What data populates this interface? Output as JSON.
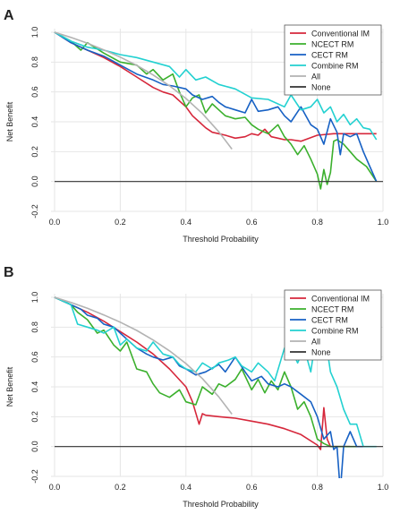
{
  "chart_data": [
    {
      "type": "line",
      "panel_label": "A",
      "xlabel": "Threshold Probability",
      "ylabel": "Net Benefit",
      "xlim": [
        0,
        1
      ],
      "ylim": [
        -0.2,
        1.0
      ],
      "xticks": [
        "0.0",
        "0.2",
        "0.4",
        "0.6",
        "0.8",
        "1.0"
      ],
      "yticks": [
        "-0.2",
        "0.0",
        "0.2",
        "0.4",
        "0.6",
        "0.8",
        "1.0"
      ],
      "grid": true,
      "legend_position": "top-right",
      "series": [
        {
          "name": "Conventional IM",
          "color": "#d6273b",
          "x": [
            0.0,
            0.05,
            0.1,
            0.15,
            0.2,
            0.25,
            0.3,
            0.33,
            0.36,
            0.4,
            0.42,
            0.44,
            0.46,
            0.48,
            0.5,
            0.52,
            0.55,
            0.58,
            0.6,
            0.62,
            0.64,
            0.66,
            0.68,
            0.7,
            0.72,
            0.75,
            0.8,
            0.85,
            0.9,
            0.95,
            0.98
          ],
          "y": [
            1.0,
            0.93,
            0.88,
            0.83,
            0.77,
            0.7,
            0.63,
            0.6,
            0.58,
            0.5,
            0.44,
            0.4,
            0.36,
            0.33,
            0.32,
            0.31,
            0.29,
            0.3,
            0.32,
            0.31,
            0.35,
            0.3,
            0.29,
            0.28,
            0.28,
            0.27,
            0.31,
            0.32,
            0.32,
            0.32,
            0.32
          ]
        },
        {
          "name": "NCECT RM",
          "color": "#3bb02d",
          "x": [
            0.0,
            0.05,
            0.08,
            0.1,
            0.15,
            0.2,
            0.25,
            0.28,
            0.3,
            0.33,
            0.36,
            0.38,
            0.4,
            0.42,
            0.44,
            0.46,
            0.48,
            0.5,
            0.52,
            0.55,
            0.58,
            0.6,
            0.62,
            0.65,
            0.68,
            0.7,
            0.72,
            0.74,
            0.76,
            0.78,
            0.8,
            0.81,
            0.82,
            0.83,
            0.84,
            0.85,
            0.86,
            0.88,
            0.9,
            0.92,
            0.95,
            0.98
          ],
          "y": [
            1.0,
            0.94,
            0.88,
            0.93,
            0.86,
            0.8,
            0.78,
            0.72,
            0.75,
            0.68,
            0.72,
            0.6,
            0.5,
            0.56,
            0.58,
            0.46,
            0.52,
            0.48,
            0.44,
            0.42,
            0.43,
            0.38,
            0.35,
            0.32,
            0.38,
            0.3,
            0.25,
            0.18,
            0.24,
            0.15,
            0.05,
            -0.05,
            0.08,
            -0.02,
            0.06,
            0.27,
            0.28,
            0.25,
            0.2,
            0.15,
            0.1,
            0.0
          ]
        },
        {
          "name": "CECT RM",
          "color": "#1761c4",
          "x": [
            0.0,
            0.05,
            0.1,
            0.15,
            0.2,
            0.25,
            0.3,
            0.33,
            0.36,
            0.4,
            0.42,
            0.45,
            0.48,
            0.5,
            0.52,
            0.55,
            0.58,
            0.6,
            0.62,
            0.65,
            0.68,
            0.7,
            0.72,
            0.75,
            0.78,
            0.8,
            0.82,
            0.84,
            0.86,
            0.87,
            0.88,
            0.9,
            0.92,
            0.94,
            0.96,
            0.98
          ],
          "y": [
            1.0,
            0.93,
            0.88,
            0.84,
            0.78,
            0.72,
            0.68,
            0.65,
            0.64,
            0.62,
            0.58,
            0.55,
            0.57,
            0.53,
            0.5,
            0.48,
            0.46,
            0.55,
            0.47,
            0.48,
            0.5,
            0.44,
            0.4,
            0.5,
            0.38,
            0.35,
            0.25,
            0.42,
            0.33,
            0.18,
            0.32,
            0.3,
            0.32,
            0.2,
            0.1,
            0.0
          ]
        },
        {
          "name": "Combine RM",
          "color": "#23d1d1",
          "x": [
            0.0,
            0.05,
            0.1,
            0.15,
            0.2,
            0.25,
            0.3,
            0.35,
            0.38,
            0.4,
            0.43,
            0.46,
            0.5,
            0.55,
            0.6,
            0.65,
            0.7,
            0.72,
            0.75,
            0.78,
            0.8,
            0.82,
            0.84,
            0.86,
            0.88,
            0.9,
            0.92,
            0.94,
            0.96,
            0.98
          ],
          "y": [
            1.0,
            0.94,
            0.9,
            0.88,
            0.85,
            0.83,
            0.8,
            0.77,
            0.7,
            0.75,
            0.68,
            0.7,
            0.65,
            0.62,
            0.56,
            0.55,
            0.5,
            0.58,
            0.48,
            0.5,
            0.55,
            0.46,
            0.5,
            0.4,
            0.45,
            0.38,
            0.42,
            0.36,
            0.35,
            0.28
          ]
        },
        {
          "name": "All",
          "color": "#b3b3b3",
          "prevalence": 0.33,
          "x": [
            0.0,
            0.05,
            0.1,
            0.15,
            0.2,
            0.25,
            0.3,
            0.35,
            0.4,
            0.45,
            0.5,
            0.54
          ],
          "y": [
            1.0,
            0.965,
            0.926,
            0.882,
            0.833,
            0.778,
            0.714,
            0.641,
            0.556,
            0.455,
            0.333,
            0.217
          ]
        },
        {
          "name": "None",
          "color": "#333333",
          "x": [
            0.0,
            1.0
          ],
          "y": [
            0.0,
            0.0
          ]
        }
      ]
    },
    {
      "type": "line",
      "panel_label": "B",
      "xlabel": "Threshold Probability",
      "ylabel": "Net Benefit",
      "xlim": [
        0,
        1
      ],
      "ylim": [
        -0.2,
        1.0
      ],
      "xticks": [
        "0.0",
        "0.2",
        "0.4",
        "0.6",
        "0.8",
        "1.0"
      ],
      "yticks": [
        "-0.2",
        "0.0",
        "0.2",
        "0.4",
        "0.6",
        "0.8",
        "1.0"
      ],
      "grid": true,
      "legend_position": "top-right",
      "series": [
        {
          "name": "Conventional IM",
          "color": "#d6273b",
          "x": [
            0.0,
            0.05,
            0.1,
            0.15,
            0.2,
            0.25,
            0.3,
            0.35,
            0.4,
            0.42,
            0.44,
            0.45,
            0.46,
            0.5,
            0.55,
            0.6,
            0.65,
            0.7,
            0.75,
            0.8,
            0.81,
            0.82,
            0.83,
            0.84,
            0.86,
            0.9
          ],
          "y": [
            1.0,
            0.95,
            0.9,
            0.84,
            0.77,
            0.7,
            0.62,
            0.52,
            0.4,
            0.3,
            0.15,
            0.22,
            0.21,
            0.2,
            0.19,
            0.17,
            0.15,
            0.12,
            0.08,
            0.01,
            -0.02,
            0.26,
            0.05,
            0.0,
            0.0,
            0.0
          ]
        },
        {
          "name": "NCECT RM",
          "color": "#3bb02d",
          "x": [
            0.0,
            0.05,
            0.07,
            0.1,
            0.13,
            0.15,
            0.18,
            0.2,
            0.22,
            0.25,
            0.28,
            0.3,
            0.32,
            0.35,
            0.38,
            0.4,
            0.43,
            0.45,
            0.48,
            0.5,
            0.52,
            0.55,
            0.57,
            0.6,
            0.62,
            0.64,
            0.66,
            0.68,
            0.7,
            0.72,
            0.74,
            0.76,
            0.78,
            0.8,
            0.82,
            0.84,
            0.86,
            0.88,
            0.9,
            0.92
          ],
          "y": [
            1.0,
            0.95,
            0.9,
            0.85,
            0.76,
            0.78,
            0.68,
            0.64,
            0.7,
            0.52,
            0.5,
            0.42,
            0.36,
            0.33,
            0.38,
            0.3,
            0.28,
            0.4,
            0.35,
            0.42,
            0.4,
            0.45,
            0.52,
            0.38,
            0.45,
            0.36,
            0.44,
            0.38,
            0.5,
            0.4,
            0.25,
            0.3,
            0.2,
            0.05,
            0.02,
            0.0,
            0.0,
            0.0,
            0.0,
            0.0
          ]
        },
        {
          "name": "CECT RM",
          "color": "#1761c4",
          "x": [
            0.0,
            0.05,
            0.08,
            0.1,
            0.13,
            0.15,
            0.18,
            0.2,
            0.22,
            0.25,
            0.28,
            0.3,
            0.33,
            0.36,
            0.38,
            0.4,
            0.43,
            0.46,
            0.5,
            0.52,
            0.55,
            0.58,
            0.6,
            0.63,
            0.65,
            0.68,
            0.7,
            0.72,
            0.75,
            0.78,
            0.8,
            0.82,
            0.84,
            0.85,
            0.86,
            0.87,
            0.88,
            0.9,
            0.92,
            0.94
          ],
          "y": [
            1.0,
            0.95,
            0.92,
            0.88,
            0.86,
            0.82,
            0.8,
            0.76,
            0.72,
            0.66,
            0.62,
            0.6,
            0.58,
            0.6,
            0.54,
            0.52,
            0.48,
            0.5,
            0.55,
            0.5,
            0.6,
            0.5,
            0.44,
            0.47,
            0.42,
            0.4,
            0.42,
            0.4,
            0.35,
            0.3,
            0.2,
            0.05,
            0.1,
            -0.02,
            0.0,
            -0.3,
            0.0,
            0.1,
            0.0,
            0.0
          ]
        },
        {
          "name": "Combine RM",
          "color": "#23d1d1",
          "x": [
            0.0,
            0.05,
            0.07,
            0.1,
            0.13,
            0.15,
            0.18,
            0.2,
            0.22,
            0.25,
            0.28,
            0.3,
            0.33,
            0.36,
            0.38,
            0.4,
            0.43,
            0.45,
            0.48,
            0.5,
            0.53,
            0.55,
            0.57,
            0.6,
            0.62,
            0.65,
            0.67,
            0.7,
            0.72,
            0.74,
            0.76,
            0.78,
            0.8,
            0.82,
            0.84,
            0.86,
            0.88,
            0.9,
            0.92,
            0.94,
            0.96,
            0.98
          ],
          "y": [
            1.0,
            0.95,
            0.82,
            0.8,
            0.78,
            0.76,
            0.8,
            0.68,
            0.72,
            0.66,
            0.64,
            0.7,
            0.62,
            0.6,
            0.55,
            0.52,
            0.5,
            0.56,
            0.52,
            0.56,
            0.58,
            0.6,
            0.54,
            0.5,
            0.56,
            0.5,
            0.44,
            0.66,
            0.66,
            0.56,
            0.66,
            0.5,
            0.8,
            0.8,
            0.5,
            0.4,
            0.25,
            0.15,
            0.15,
            0.0,
            0.0,
            0.0
          ]
        },
        {
          "name": "All",
          "color": "#b3b3b3",
          "prevalence": 0.33,
          "x": [
            0.0,
            0.05,
            0.1,
            0.15,
            0.2,
            0.25,
            0.3,
            0.35,
            0.4,
            0.45,
            0.5,
            0.54
          ],
          "y": [
            1.0,
            0.965,
            0.926,
            0.882,
            0.833,
            0.778,
            0.714,
            0.641,
            0.556,
            0.455,
            0.333,
            0.217
          ]
        },
        {
          "name": "None",
          "color": "#333333",
          "x": [
            0.0,
            1.0
          ],
          "y": [
            0.0,
            0.0
          ]
        }
      ]
    }
  ]
}
